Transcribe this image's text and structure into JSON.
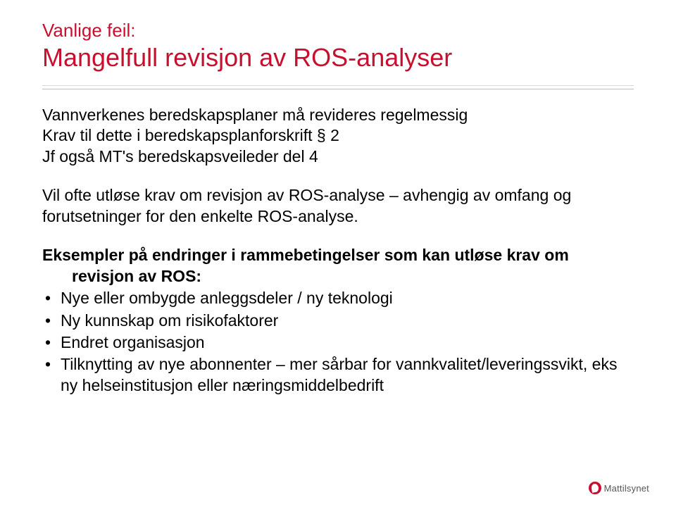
{
  "colors": {
    "accent": "#c8102e",
    "rule_light": "#d9d9d9",
    "rule_dark": "#bfbfbf",
    "text": "#000000",
    "logo_bg": "#c8102e",
    "logo_text": "#555555"
  },
  "typography": {
    "pretitle_fontsize": 26,
    "title_fontsize": 36,
    "body_fontsize": 23,
    "font_family": "Arial"
  },
  "pretitle": "Vanlige feil:",
  "title": "Mangelfull revisjon av ROS-analyser",
  "para1_line1": "Vannverkenes beredskapsplaner må revideres regelmessig",
  "para1_line2": "Krav til dette i beredskapsplanforskrift § 2",
  "para1_line3": "Jf også MT's beredskapsveileder del 4",
  "para2": "Vil ofte utløse krav om revisjon av ROS-analyse – avhengig av omfang og forutsetninger for den enkelte ROS-analyse.",
  "para3_lead": "Eksempler på endringer i rammebetingelser som kan utløse krav om revisjon av ROS:",
  "bullets": [
    "Nye eller ombygde anleggsdeler / ny teknologi",
    "Ny kunnskap om risikofaktorer",
    "Endret organisasjon",
    "Tilknytting av nye abonnenter – mer sårbar for vannkvalitet/leveringssvikt, eks ny helseinstitusjon eller næringsmiddelbedrift"
  ],
  "logo_text": "Mattilsynet"
}
